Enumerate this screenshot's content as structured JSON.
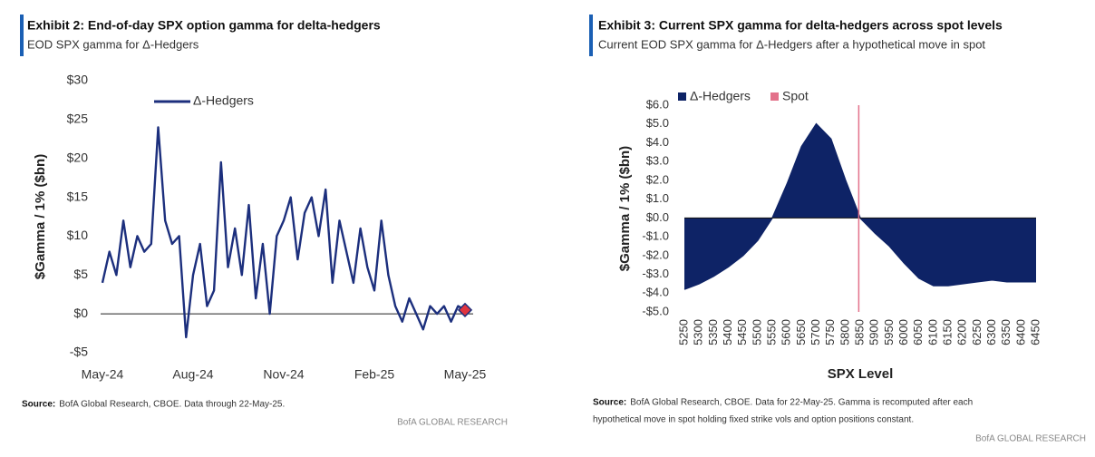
{
  "chart_data": [
    {
      "type": "line",
      "title": "Exhibit 2: End-of-day SPX option gamma for delta-hedgers",
      "subtitle": "EOD SPX gamma for Δ-Hedgers",
      "ylabel": "$Gamma / 1% ($bn)",
      "categories": [
        "May-24",
        null,
        null,
        null,
        null,
        null,
        null,
        null,
        null,
        null,
        null,
        null,
        null,
        "Aug-24",
        null,
        null,
        null,
        null,
        null,
        null,
        null,
        null,
        null,
        null,
        null,
        null,
        "Nov-24",
        null,
        null,
        null,
        null,
        null,
        null,
        null,
        null,
        null,
        null,
        null,
        null,
        "Feb-25",
        null,
        null,
        null,
        null,
        null,
        null,
        null,
        null,
        null,
        null,
        null,
        null,
        "May-25"
      ],
      "series": [
        {
          "name": "Δ-Hedgers",
          "color": "#1c2f7d",
          "values": [
            4,
            8,
            5,
            12,
            6,
            10,
            8,
            9,
            24,
            12,
            9,
            10,
            -3,
            5,
            9,
            1,
            3,
            19.5,
            6,
            11,
            5,
            14,
            2,
            9,
            0,
            10,
            12,
            15,
            7,
            13,
            15,
            10,
            16,
            4,
            12,
            8,
            4,
            11,
            6,
            3,
            12,
            5,
            1,
            -1,
            2,
            0,
            -2,
            1,
            0,
            1,
            -1,
            1,
            0.5
          ]
        }
      ],
      "ylim": [
        -5,
        30
      ],
      "yticks": [
        {
          "value": 30,
          "label": "$30"
        },
        {
          "value": 25,
          "label": "$25"
        },
        {
          "value": 20,
          "label": "$20"
        },
        {
          "value": 15,
          "label": "$15"
        },
        {
          "value": 10,
          "label": "$10"
        },
        {
          "value": 5,
          "label": "$5"
        },
        {
          "value": 0,
          "label": "$0"
        },
        {
          "value": -5,
          "label": "-$5"
        }
      ],
      "marker_color": "#e0343f",
      "source_label": "Source:",
      "source_lines": [
        "BofA Global Research, CBOE. Data through 22-May-25."
      ],
      "brand": "BofA GLOBAL RESEARCH"
    },
    {
      "type": "area",
      "title": "Exhibit 3: Current SPX gamma for delta-hedgers across spot levels",
      "subtitle": "Current EOD SPX gamma for Δ-Hedgers after a hypothetical move in spot",
      "ylabel": "$Gamma / 1% ($bn)",
      "xlabel": "SPX Level",
      "x": [
        5250,
        5300,
        5350,
        5400,
        5450,
        5500,
        5550,
        5600,
        5650,
        5700,
        5750,
        5800,
        5850,
        5900,
        5950,
        6000,
        6050,
        6100,
        6150,
        6200,
        6250,
        6300,
        6350,
        6400,
        6450
      ],
      "series": [
        {
          "name": "Δ-Hedgers",
          "color": "#0e2366",
          "values": [
            -3.8,
            -3.5,
            -3.1,
            -2.6,
            -2.0,
            -1.2,
            0.0,
            1.8,
            3.8,
            5.0,
            4.2,
            2.0,
            0.0,
            -0.8,
            -1.5,
            -2.4,
            -3.2,
            -3.6,
            -3.6,
            -3.5,
            -3.4,
            -3.3,
            -3.4,
            -3.4,
            -3.4
          ]
        }
      ],
      "spot": {
        "name": "Spot",
        "value": 5845,
        "color": "#e3718a"
      },
      "xlim": [
        5250,
        6450
      ],
      "xticks": [
        5250,
        5300,
        5350,
        5400,
        5450,
        5500,
        5550,
        5600,
        5650,
        5700,
        5750,
        5800,
        5850,
        5900,
        5950,
        6000,
        6050,
        6100,
        6150,
        6200,
        6250,
        6300,
        6350,
        6400,
        6450
      ],
      "ylim": [
        -5,
        6
      ],
      "yticks": [
        {
          "value": 6,
          "label": "$6.0"
        },
        {
          "value": 5,
          "label": "$5.0"
        },
        {
          "value": 4,
          "label": "$4.0"
        },
        {
          "value": 3,
          "label": "$3.0"
        },
        {
          "value": 2,
          "label": "$2.0"
        },
        {
          "value": 1,
          "label": "$1.0"
        },
        {
          "value": 0,
          "label": "$0.0"
        },
        {
          "value": -1,
          "label": "-$1.0"
        },
        {
          "value": -2,
          "label": "-$2.0"
        },
        {
          "value": -3,
          "label": "-$3.0"
        },
        {
          "value": -4,
          "label": "-$4.0"
        },
        {
          "value": -5,
          "label": "-$5.0"
        }
      ],
      "source_label": "Source:",
      "source_lines": [
        "BofA Global Research, CBOE. Data for 22-May-25. Gamma is recomputed after each",
        "hypothetical move in spot holding fixed strike vols and option positions constant."
      ],
      "brand": "BofA GLOBAL RESEARCH"
    }
  ]
}
